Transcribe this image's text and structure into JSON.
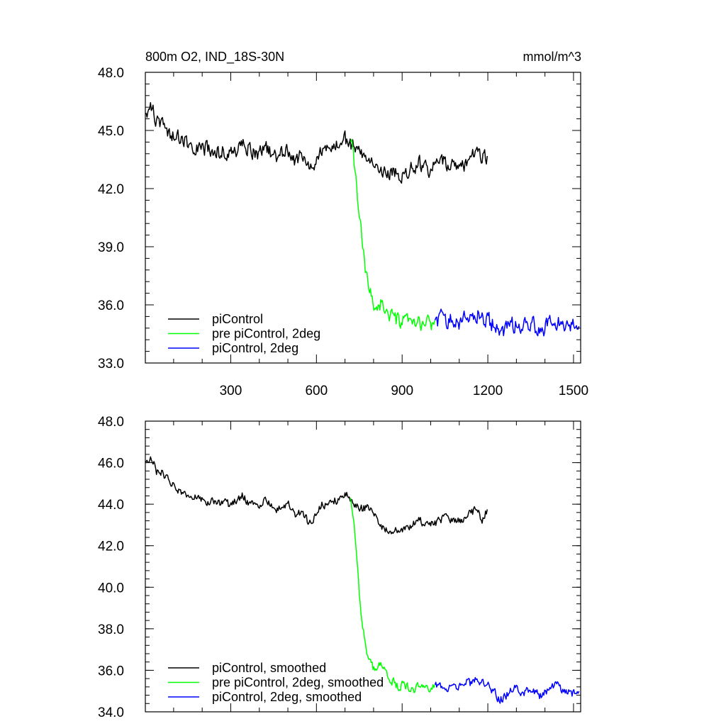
{
  "figure": {
    "title_left": "800m O2, IND_18S-30N",
    "title_right": "mmol/m^3"
  },
  "chart_data": [
    {
      "type": "line",
      "title": "800m O2, IND_18S-30N",
      "units": "mmol/m^3",
      "xlim": [
        1,
        1525
      ],
      "ylim": [
        33.0,
        48.0
      ],
      "xticks": [
        300,
        600,
        900,
        1200,
        1500
      ],
      "yticks": [
        33.0,
        36.0,
        39.0,
        42.0,
        45.0,
        48.0
      ],
      "ytick_labels": [
        "33.0",
        "36.0",
        "39.0",
        "42.0",
        "45.0",
        "48.0"
      ],
      "legend_position": "lower-left",
      "series": [
        {
          "name": "piControl",
          "color": "#000000",
          "x": [
            1,
            20,
            40,
            60,
            80,
            100,
            120,
            140,
            160,
            180,
            200,
            220,
            240,
            260,
            280,
            300,
            320,
            340,
            360,
            380,
            400,
            420,
            440,
            460,
            480,
            500,
            520,
            540,
            560,
            580,
            600,
            620,
            640,
            660,
            680,
            700,
            720,
            740,
            760,
            780,
            800,
            820,
            840,
            860,
            880,
            900,
            920,
            940,
            960,
            980,
            1000,
            1020,
            1040,
            1060,
            1080,
            1100,
            1120,
            1140,
            1160,
            1180,
            1200
          ],
          "y": [
            45.9,
            46.3,
            45.5,
            45.4,
            45.0,
            44.7,
            44.6,
            44.4,
            44.3,
            44.2,
            44.1,
            44.0,
            43.9,
            43.9,
            44.0,
            43.8,
            44.0,
            44.3,
            44.1,
            43.9,
            43.8,
            44.2,
            43.9,
            43.7,
            43.8,
            44.0,
            43.4,
            43.6,
            43.3,
            42.9,
            43.5,
            44.0,
            43.9,
            44.2,
            44.1,
            44.5,
            44.3,
            44.0,
            43.7,
            43.8,
            43.6,
            43.2,
            42.8,
            42.7,
            42.9,
            42.6,
            43.0,
            43.1,
            43.3,
            43.0,
            43.0,
            43.1,
            43.4,
            43.2,
            43.3,
            43.0,
            43.2,
            43.6,
            43.8,
            43.5,
            43.7
          ],
          "noise": 0.55
        },
        {
          "name": "pre piControl, 2deg",
          "color": "#00ff00",
          "x": [
            720,
            730,
            740,
            750,
            760,
            770,
            780,
            790,
            800,
            810,
            820,
            830,
            840,
            850,
            860,
            870,
            880,
            890,
            900,
            920,
            940,
            960,
            980,
            1000,
            1015
          ],
          "y": [
            44.4,
            43.6,
            42.2,
            40.6,
            39.2,
            37.9,
            37.0,
            36.6,
            36.1,
            35.9,
            36.0,
            36.2,
            35.8,
            35.5,
            35.3,
            35.4,
            35.2,
            35.1,
            35.1,
            35.1,
            35.0,
            35.0,
            35.1,
            35.0,
            35.2
          ],
          "noise": 0.55
        },
        {
          "name": "piControl, 2deg",
          "color": "#0000ff",
          "x": [
            1015,
            1040,
            1060,
            1080,
            1100,
            1120,
            1140,
            1160,
            1180,
            1200,
            1220,
            1240,
            1260,
            1280,
            1300,
            1320,
            1340,
            1360,
            1380,
            1400,
            1420,
            1440,
            1460,
            1480,
            1500,
            1520
          ],
          "y": [
            35.2,
            35.3,
            35.2,
            35.3,
            35.1,
            35.4,
            35.3,
            35.6,
            35.3,
            35.2,
            35.0,
            34.6,
            34.6,
            34.9,
            35.0,
            34.8,
            34.9,
            35.0,
            34.7,
            34.8,
            35.1,
            35.2,
            35.0,
            34.9,
            34.9,
            34.9
          ],
          "noise": 0.6
        }
      ]
    },
    {
      "type": "line",
      "xlim": [
        1,
        1525
      ],
      "ylim": [
        34.0,
        48.0
      ],
      "xticks": [
        300,
        600,
        900,
        1200,
        1500
      ],
      "yticks": [
        34.0,
        36.0,
        38.0,
        40.0,
        42.0,
        44.0,
        46.0,
        48.0
      ],
      "ytick_labels": [
        "34.0",
        "36.0",
        "38.0",
        "40.0",
        "42.0",
        "44.0",
        "46.0",
        "48.0"
      ],
      "legend_position": "lower-left",
      "series": [
        {
          "name": "piControl, smoothed",
          "color": "#000000",
          "x": [
            1,
            20,
            40,
            60,
            80,
            100,
            120,
            140,
            160,
            180,
            200,
            220,
            240,
            260,
            280,
            300,
            320,
            340,
            360,
            380,
            400,
            420,
            440,
            460,
            480,
            500,
            520,
            540,
            560,
            580,
            600,
            620,
            640,
            660,
            680,
            700,
            720,
            740,
            760,
            780,
            800,
            820,
            840,
            860,
            880,
            900,
            920,
            940,
            960,
            980,
            1000,
            1020,
            1040,
            1060,
            1080,
            1100,
            1120,
            1140,
            1160,
            1180,
            1200
          ],
          "y": [
            46.0,
            46.3,
            45.6,
            45.5,
            45.2,
            44.9,
            44.6,
            44.6,
            44.4,
            44.3,
            44.2,
            44.1,
            44.1,
            44.0,
            44.1,
            43.9,
            44.2,
            44.4,
            44.1,
            44.0,
            43.9,
            44.2,
            44.0,
            43.8,
            43.8,
            44.0,
            43.5,
            43.6,
            43.4,
            43.0,
            43.6,
            44.0,
            44.0,
            44.2,
            44.1,
            44.6,
            44.2,
            43.9,
            43.8,
            43.8,
            43.5,
            43.1,
            42.8,
            42.7,
            42.8,
            42.6,
            42.9,
            43.1,
            43.2,
            43.0,
            43.1,
            43.1,
            43.3,
            43.3,
            43.2,
            43.2,
            43.3,
            43.6,
            43.7,
            43.3,
            43.8
          ],
          "noise": 0.28
        },
        {
          "name": "pre piControl, 2deg, smoothed",
          "color": "#00ff00",
          "x": [
            720,
            730,
            740,
            750,
            760,
            770,
            780,
            790,
            800,
            810,
            820,
            830,
            840,
            850,
            860,
            870,
            880,
            890,
            900,
            920,
            940,
            960,
            980,
            1000,
            1015
          ],
          "y": [
            44.3,
            43.3,
            41.6,
            39.7,
            38.2,
            37.4,
            36.7,
            36.3,
            36.1,
            36.1,
            36.2,
            36.3,
            35.9,
            35.6,
            35.4,
            35.5,
            35.3,
            35.2,
            35.3,
            35.2,
            35.1,
            35.2,
            35.3,
            35.1,
            35.3
          ],
          "noise": 0.28
        },
        {
          "name": "piControl, 2deg, smoothed",
          "color": "#0000ff",
          "x": [
            1015,
            1040,
            1060,
            1080,
            1100,
            1120,
            1140,
            1160,
            1180,
            1200,
            1220,
            1240,
            1260,
            1280,
            1300,
            1320,
            1340,
            1360,
            1380,
            1400,
            1420,
            1440,
            1460,
            1480,
            1500,
            1520
          ],
          "y": [
            35.3,
            35.3,
            35.2,
            35.4,
            35.2,
            35.5,
            35.3,
            35.7,
            35.4,
            35.3,
            35.0,
            34.6,
            34.7,
            35.0,
            35.1,
            34.9,
            35.0,
            35.1,
            34.8,
            34.9,
            35.2,
            35.4,
            35.1,
            35.0,
            34.9,
            35.0
          ],
          "noise": 0.3
        }
      ]
    }
  ]
}
